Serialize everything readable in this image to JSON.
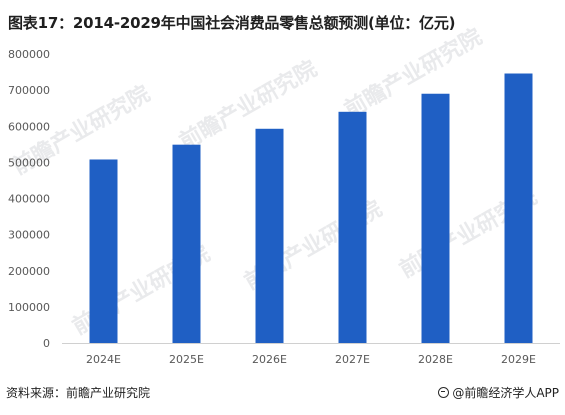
{
  "title": "图表17：2014-2029年中国社会消费品零售总额预测(单位：亿元)",
  "footer": {
    "source": "资料来源：前瞻产业研究院",
    "brand": "@前瞻经济学人APP",
    "brand_icon": "qianzhan-logo-icon"
  },
  "watermark": {
    "text": "前瞻产业研究院",
    "color": "#e9eaec"
  },
  "colors": {
    "bar": "#1f5fc4",
    "tick_text": "#595959",
    "axis": "#d0d0d0"
  },
  "chart_data": {
    "type": "bar",
    "categories": [
      "2024E",
      "2025E",
      "2026E",
      "2027E",
      "2028E",
      "2029E"
    ],
    "values": [
      508000,
      549000,
      593000,
      640000,
      690000,
      746000
    ],
    "ylim": [
      0,
      800000
    ],
    "yticks": [
      "0",
      "100000",
      "200000",
      "300000",
      "400000",
      "500000",
      "600000",
      "700000",
      "800000"
    ],
    "grid": false,
    "legend": "none"
  }
}
